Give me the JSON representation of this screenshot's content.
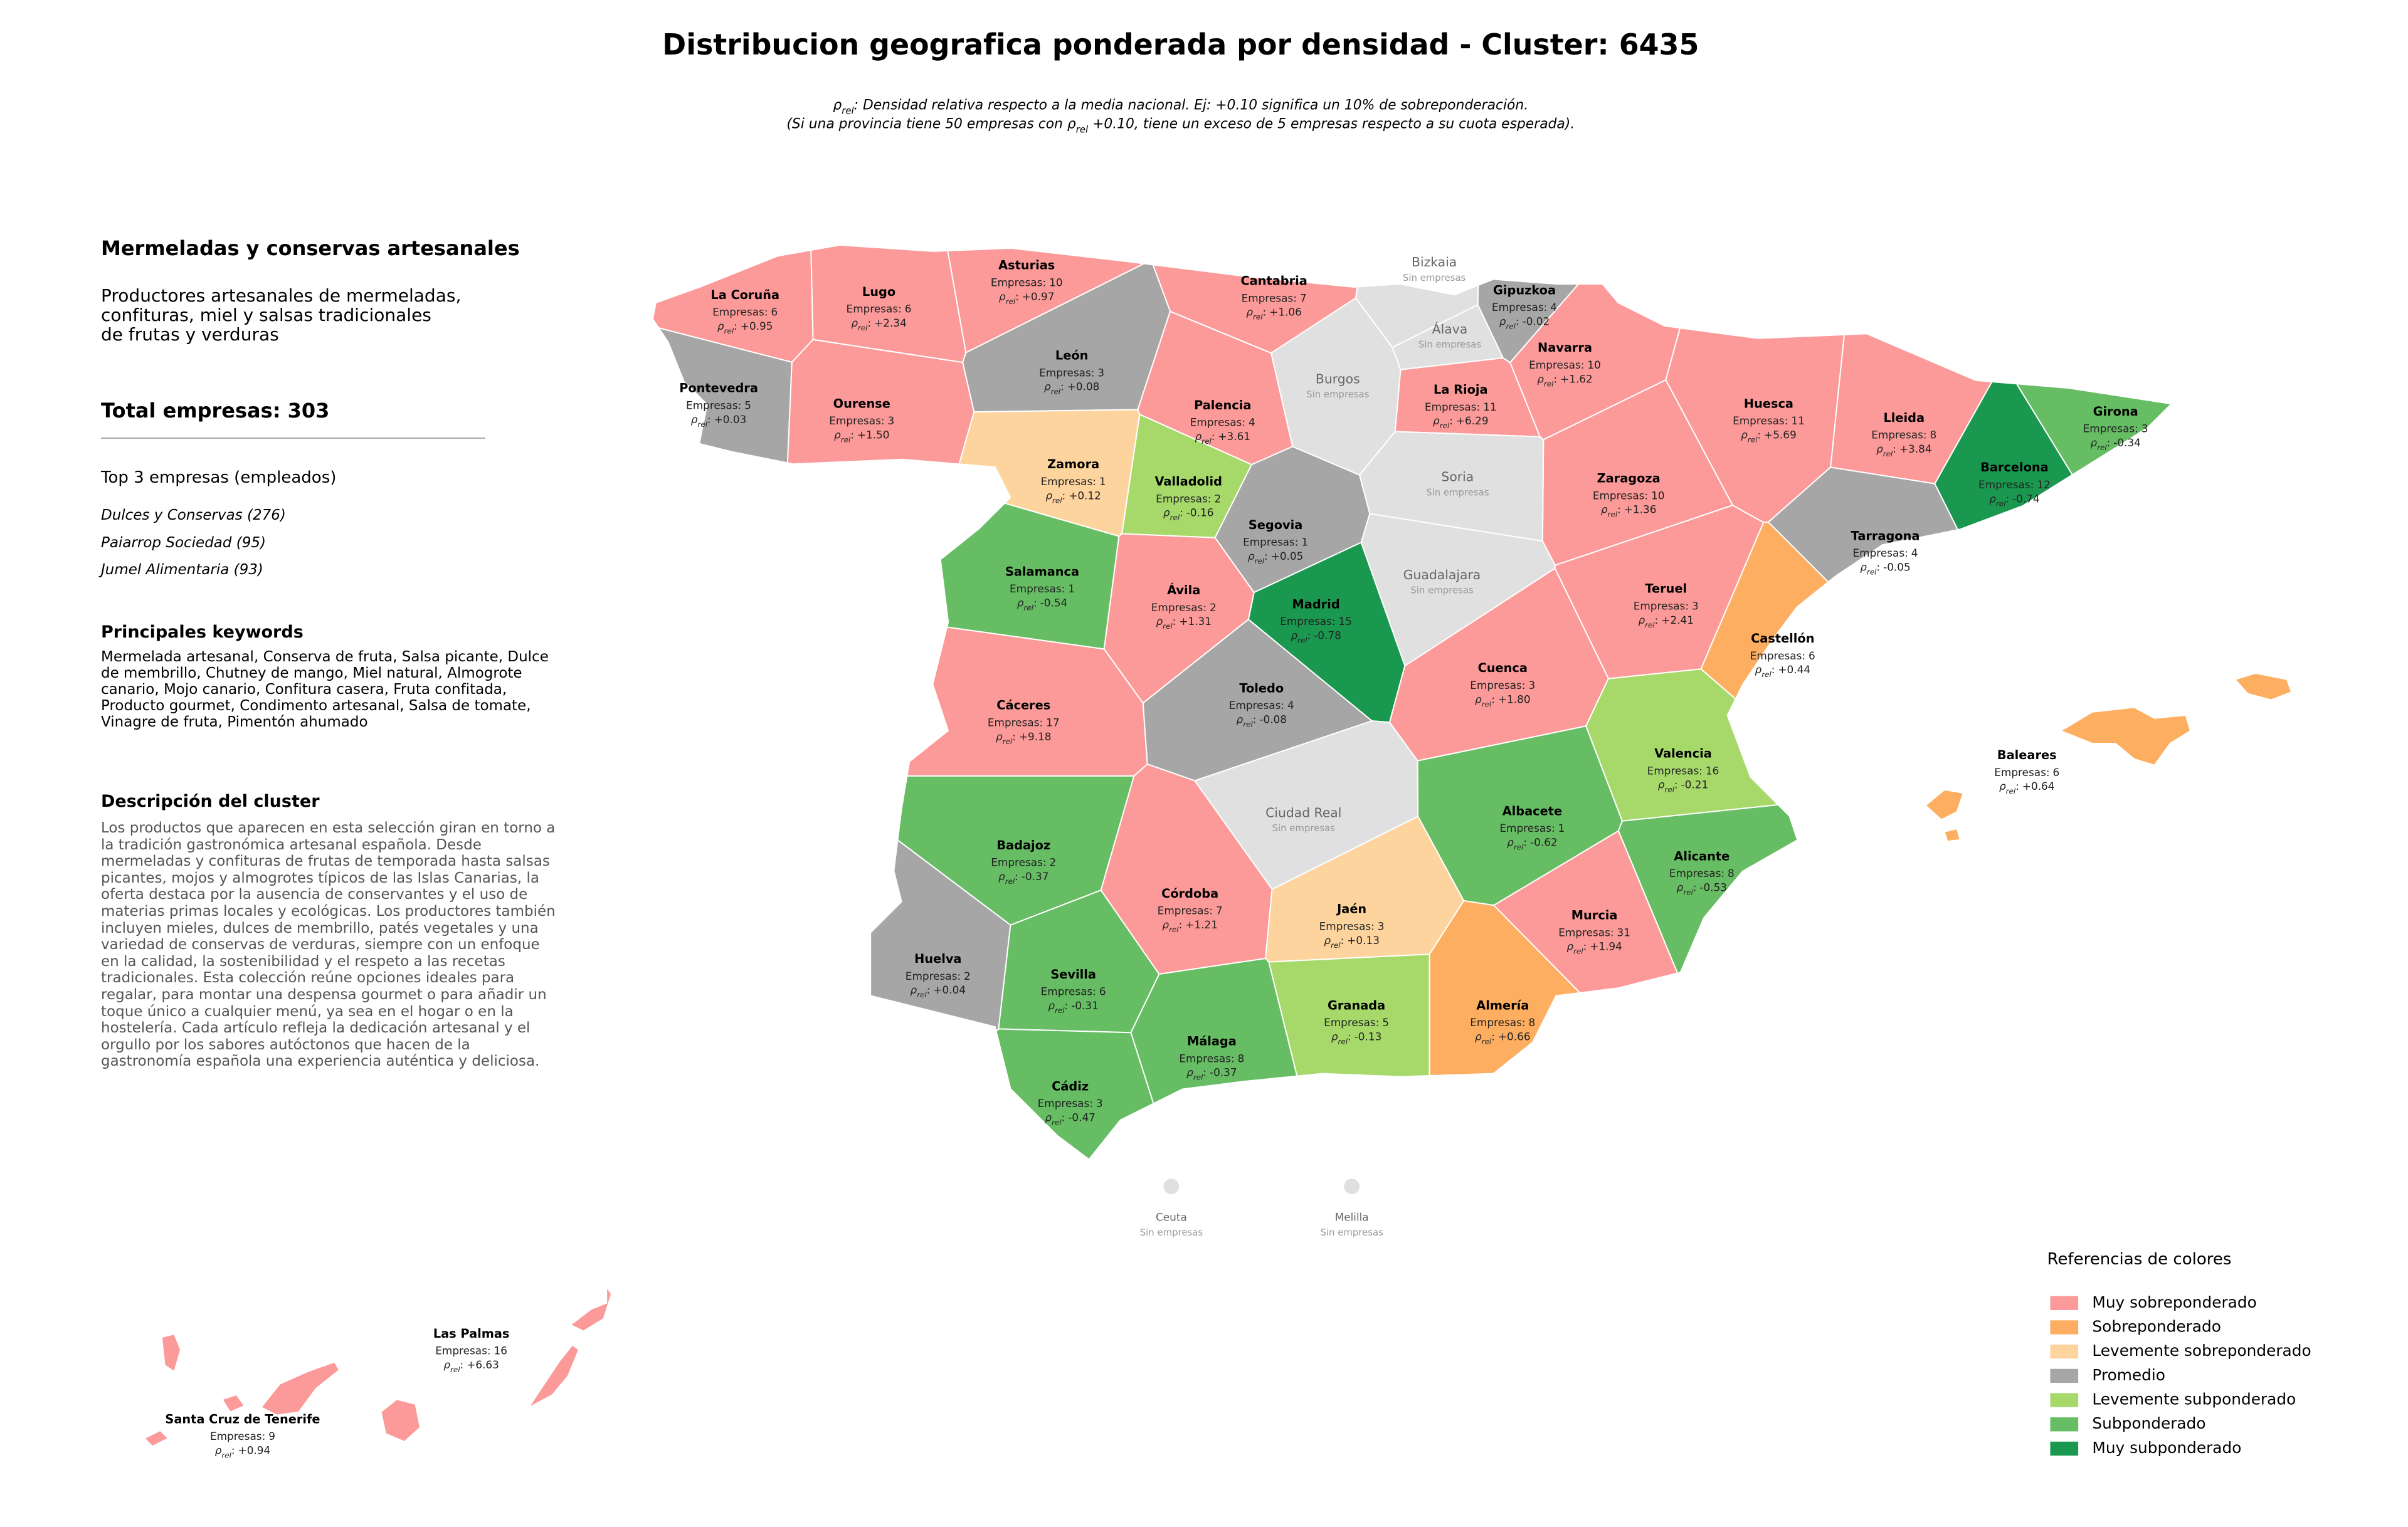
{
  "header": {
    "title": "Distribucion geografica ponderada por densidad - Cluster: 6435",
    "note": {
      "line1": {
        "symbol": "ρ",
        "sub": "rel",
        "text": ": Densidad relativa respecto a la media nacional. Ej: +0.10 significa un 10% de sobreponderación."
      },
      "line2": {
        "before": "(Si una provincia tiene 50 empresas con ",
        "symbol": "ρ",
        "sub": "rel",
        "after": " +0.10, tiene un exceso de 5 empresas respecto a su cuota esperada)."
      }
    }
  },
  "sidebar": {
    "title": "Mermeladas y conservas artesanales",
    "description_lines": [
      "Productores artesanales de mermeladas,",
      "confituras, miel y salsas tradicionales",
      "de frutas y verduras"
    ],
    "total_label": "Total empresas:",
    "total": 303,
    "top_title": "Top 3 empresas (empleados)",
    "top": [
      "Dulces y Conservas (276)",
      "Paiarrop Sociedad (95)",
      "Jumel Alimentaria (93)"
    ],
    "keywords_title": "Principales keywords",
    "keywords": "Mermelada artesanal, Conserva de fruta, Salsa picante, Dulce de membrillo, Chutney de mango, Miel natural, Almogrote canario, Mojo canario, Confitura casera, Fruta confitada, Producto gourmet, Condimento artesanal, Salsa de tomate, Vinagre de fruta, Pimentón ahumado",
    "cluster_title": "Descripción del cluster",
    "cluster_text": "Los productos que aparecen en esta selección giran en torno a la tradición gastronómica artesanal española. Desde mermeladas y confituras de frutas de temporada hasta salsas picantes, mojos y almogrotes típicos de las Islas Canarias, la oferta destaca por la ausencia de conservantes y el uso de materias primas locales y ecológicas. Los productores también incluyen mieles, dulces de membrillo, patés vegetales y una variedad de conservas de verduras, siempre con un enfoque en la calidad, la sostenibilidad y el respeto a las recetas tradicionales. Esta colección reúne opciones ideales para regalar, para montar una despensa gourmet o para añadir un toque único a cualquier menú, ya sea en el hogar o en la hostelería. Cada artículo refleja la dedicación artesanal y el orgullo por los sabores autóctonos que hacen de la gastronomía española una experiencia auténtica y deliciosa."
  },
  "map": {
    "empresas_prefix": "Empresas:",
    "rho_symbol": "ρ",
    "rho_sub": "rel",
    "rho_sep": ":",
    "no_data_label": "Sin empresas",
    "no_data_color": "#e0e0e0",
    "provinces": [
      {
        "name": "La Coruña",
        "empresas": 6,
        "rho": "+0.95",
        "color": "#fb9a99"
      },
      {
        "name": "Lugo",
        "empresas": 6,
        "rho": "+2.34",
        "color": "#fb9a99"
      },
      {
        "name": "Asturias",
        "empresas": 10,
        "rho": "+0.97",
        "color": "#fb9a99"
      },
      {
        "name": "Cantabria",
        "empresas": 7,
        "rho": "+1.06",
        "color": "#fb9a99"
      },
      {
        "name": "Gipuzkoa",
        "empresas": 4,
        "rho": "-0.02",
        "color": "#a6a6a6"
      },
      {
        "name": "Navarra",
        "empresas": 10,
        "rho": "+1.62",
        "color": "#fb9a99"
      },
      {
        "name": "Pontevedra",
        "empresas": 5,
        "rho": "+0.03",
        "color": "#a6a6a6"
      },
      {
        "name": "Ourense",
        "empresas": 3,
        "rho": "+1.50",
        "color": "#fb9a99"
      },
      {
        "name": "León",
        "empresas": 3,
        "rho": "+0.08",
        "color": "#a6a6a6"
      },
      {
        "name": "Palencia",
        "empresas": 4,
        "rho": "+3.61",
        "color": "#fb9a99"
      },
      {
        "name": "La Rioja",
        "empresas": 11,
        "rho": "+6.29",
        "color": "#fb9a99"
      },
      {
        "name": "Huesca",
        "empresas": 11,
        "rho": "+5.69",
        "color": "#fb9a99"
      },
      {
        "name": "Lleida",
        "empresas": 8,
        "rho": "+3.84",
        "color": "#fb9a99"
      },
      {
        "name": "Girona",
        "empresas": 3,
        "rho": "-0.34",
        "color": "#66bd63"
      },
      {
        "name": "Zamora",
        "empresas": 1,
        "rho": "+0.12",
        "color": "#fdd49e"
      },
      {
        "name": "Valladolid",
        "empresas": 2,
        "rho": "-0.16",
        "color": "#a6d96a"
      },
      {
        "name": "Zaragoza",
        "empresas": 10,
        "rho": "+1.36",
        "color": "#fb9a99"
      },
      {
        "name": "Barcelona",
        "empresas": 12,
        "rho": "-0.74",
        "color": "#1a9850"
      },
      {
        "name": "Segovia",
        "empresas": 1,
        "rho": "+0.05",
        "color": "#a6a6a6"
      },
      {
        "name": "Tarragona",
        "empresas": 4,
        "rho": "-0.05",
        "color": "#a6a6a6"
      },
      {
        "name": "Salamanca",
        "empresas": 1,
        "rho": "-0.54",
        "color": "#66bd63"
      },
      {
        "name": "Madrid",
        "empresas": 15,
        "rho": "-0.78",
        "color": "#1a9850"
      },
      {
        "name": "Ávila",
        "empresas": 2,
        "rho": "+1.31",
        "color": "#fb9a99"
      },
      {
        "name": "Teruel",
        "empresas": 3,
        "rho": "+2.41",
        "color": "#fb9a99"
      },
      {
        "name": "Castellón",
        "empresas": 6,
        "rho": "+0.44",
        "color": "#fdae61"
      },
      {
        "name": "Cuenca",
        "empresas": 3,
        "rho": "+1.80",
        "color": "#fb9a99"
      },
      {
        "name": "Toledo",
        "empresas": 4,
        "rho": "-0.08",
        "color": "#a6a6a6"
      },
      {
        "name": "Cáceres",
        "empresas": 17,
        "rho": "+9.18",
        "color": "#fb9a99"
      },
      {
        "name": "Valencia",
        "empresas": 16,
        "rho": "-0.21",
        "color": "#a6d96a"
      },
      {
        "name": "Albacete",
        "empresas": 1,
        "rho": "-0.62",
        "color": "#66bd63"
      },
      {
        "name": "Badajoz",
        "empresas": 2,
        "rho": "-0.37",
        "color": "#66bd63"
      },
      {
        "name": "Alicante",
        "empresas": 8,
        "rho": "-0.53",
        "color": "#66bd63"
      },
      {
        "name": "Córdoba",
        "empresas": 7,
        "rho": "+1.21",
        "color": "#fb9a99"
      },
      {
        "name": "Jaén",
        "empresas": 3,
        "rho": "+0.13",
        "color": "#fdd49e"
      },
      {
        "name": "Murcia",
        "empresas": 31,
        "rho": "+1.94",
        "color": "#fb9a99"
      },
      {
        "name": "Huelva",
        "empresas": 2,
        "rho": "+0.04",
        "color": "#a6a6a6"
      },
      {
        "name": "Sevilla",
        "empresas": 6,
        "rho": "-0.31",
        "color": "#66bd63"
      },
      {
        "name": "Granada",
        "empresas": 5,
        "rho": "-0.13",
        "color": "#a6d96a"
      },
      {
        "name": "Almería",
        "empresas": 8,
        "rho": "+0.66",
        "color": "#fdae61"
      },
      {
        "name": "Málaga",
        "empresas": 8,
        "rho": "-0.37",
        "color": "#66bd63"
      },
      {
        "name": "Cádiz",
        "empresas": 3,
        "rho": "-0.47",
        "color": "#66bd63"
      },
      {
        "name": "Baleares",
        "empresas": 6,
        "rho": "+0.64",
        "color": "#fdae61"
      },
      {
        "name": "Las Palmas",
        "empresas": 16,
        "rho": "+6.63",
        "color": "#fb9a99"
      },
      {
        "name": "Santa Cruz de Tenerife",
        "empresas": 9,
        "rho": "+0.94",
        "color": "#fb9a99"
      }
    ],
    "no_data": [
      "Bizkaia",
      "Álava",
      "Burgos",
      "Soria",
      "Guadalajara",
      "Ciudad Real",
      "Ceuta",
      "Melilla"
    ]
  },
  "legend": {
    "title": "Referencias de colores",
    "items": [
      {
        "label": "Muy sobreponderado",
        "color": "#fb9a99"
      },
      {
        "label": "Sobreponderado",
        "color": "#fdae61"
      },
      {
        "label": "Levemente sobreponderado",
        "color": "#fdd49e"
      },
      {
        "label": "Promedio",
        "color": "#a6a6a6"
      },
      {
        "label": "Levemente subponderado",
        "color": "#a6d96a"
      },
      {
        "label": "Subponderado",
        "color": "#66bd63"
      },
      {
        "label": "Muy subponderado",
        "color": "#1a9850"
      }
    ]
  }
}
